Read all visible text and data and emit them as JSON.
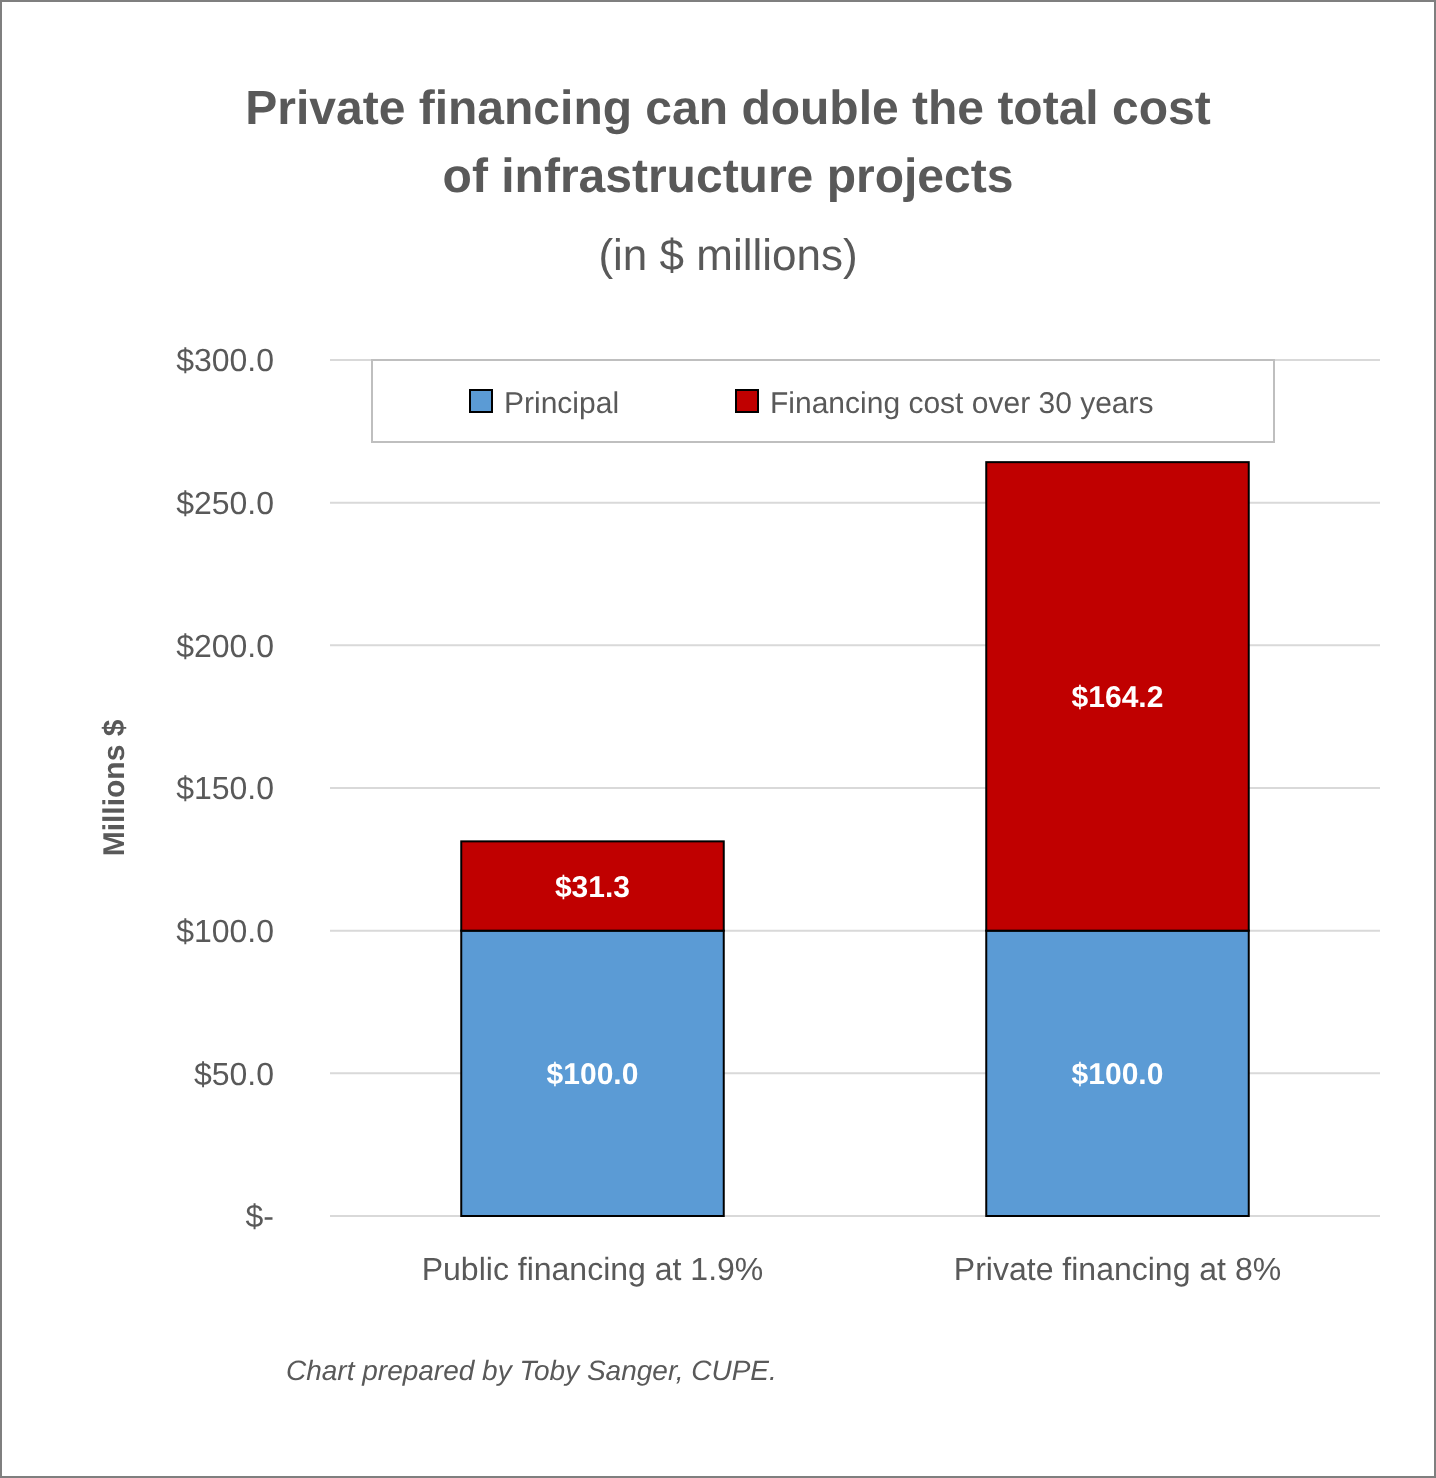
{
  "chart_data": {
    "type": "bar",
    "title": "Private financing can double the total cost of infrastructure projects",
    "subtitle": "(in $ millions)",
    "ylabel": "Millions $",
    "categories": [
      "Public financing at 1.9%",
      "Private financing at 8%"
    ],
    "series": [
      {
        "name": "Principal",
        "color": "#5b9bd5",
        "values": [
          100.0,
          100.0
        ],
        "value_labels": [
          "$100.0",
          "$100.0"
        ]
      },
      {
        "name": "Financing cost over 30 years",
        "color": "#c00000",
        "values": [
          31.3,
          164.2
        ],
        "value_labels": [
          "$31.3",
          "$164.2"
        ]
      }
    ],
    "stacked": true,
    "ylim": [
      0,
      300
    ],
    "yticks": [
      {
        "value": 0,
        "label": "$-"
      },
      {
        "value": 50,
        "label": "$50.0"
      },
      {
        "value": 100,
        "label": "$100.0"
      },
      {
        "value": 150,
        "label": "$150.0"
      },
      {
        "value": 200,
        "label": "$200.0"
      },
      {
        "value": 250,
        "label": "$250.0"
      },
      {
        "value": 300,
        "label": "$300.0"
      }
    ],
    "grid": "y",
    "legend": "top",
    "annotations": [
      "Chart prepared by Toby Sanger, CUPE."
    ]
  }
}
